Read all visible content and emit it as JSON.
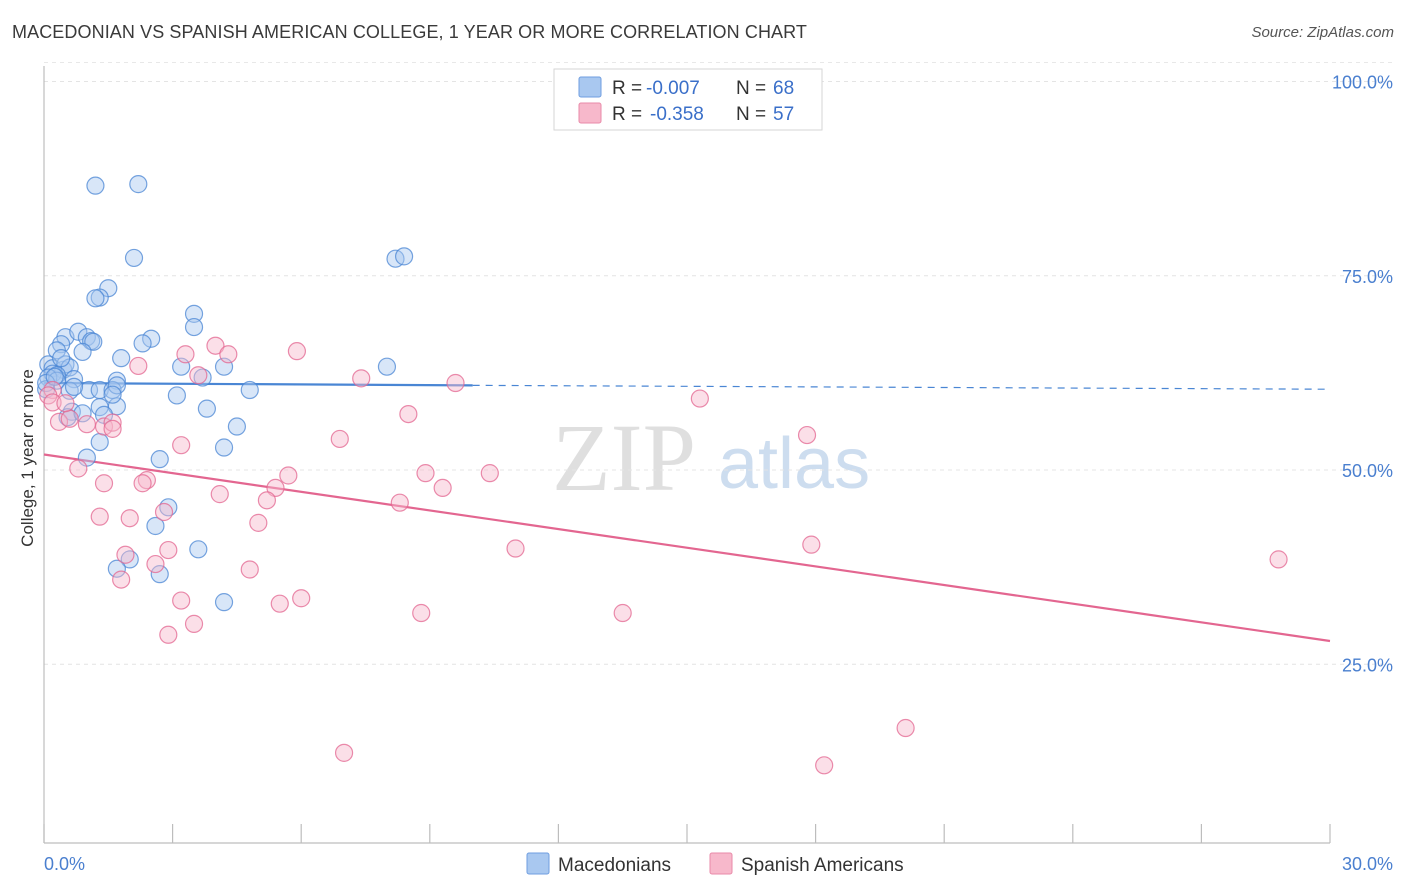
{
  "header": {
    "title": "MACEDONIAN VS SPANISH AMERICAN COLLEGE, 1 YEAR OR MORE CORRELATION CHART",
    "source": "Source: ZipAtlas.com"
  },
  "watermark": {
    "zip": "ZIP",
    "atlas": "atlas"
  },
  "legend_top": {
    "rows": [
      {
        "r_label": "R =",
        "r_value": "-0.007",
        "n_label": "N =",
        "n_value": "68",
        "color": "#a9c8f0"
      },
      {
        "r_label": "R =",
        "r_value": "-0.358",
        "n_label": "N =",
        "n_value": "57",
        "color": "#f7b8cb"
      }
    ]
  },
  "legend_bottom": {
    "items": [
      {
        "label": "Macedonians",
        "color": "#a9c8f0"
      },
      {
        "label": "Spanish Americans",
        "color": "#f7b8cb"
      }
    ]
  },
  "chart_data": {
    "type": "scatter",
    "title": "MACEDONIAN VS SPANISH AMERICAN COLLEGE, 1 YEAR OR MORE CORRELATION CHART",
    "xlabel": "",
    "ylabel": "College, 1 year or more",
    "xlim": [
      0,
      30
    ],
    "ylim": [
      2,
      102
    ],
    "x_tick_labels": [
      "0.0%",
      "30.0%"
    ],
    "y_ticks": [
      25,
      50,
      75,
      100
    ],
    "y_tick_labels": [
      "25.0%",
      "50.0%",
      "75.0%",
      "100.0%"
    ],
    "grid": true,
    "colors": {
      "macedonians": "#4a86d4",
      "spanish": "#e36690",
      "mac_fill": "#a9c8f0",
      "spa_fill": "#f7b8cb"
    },
    "series": [
      {
        "name": "Macedonians",
        "r": -0.007,
        "n": 68,
        "trend": {
          "x0": 0,
          "y0": 61.2,
          "x1": 10,
          "y1": 60.9,
          "x_dash_end": 30,
          "y_dash_end": 60.4
        },
        "points": [
          [
            1.2,
            86.6
          ],
          [
            2.2,
            86.8
          ],
          [
            2.1,
            77.3
          ],
          [
            8.2,
            77.2
          ],
          [
            8.4,
            77.5
          ],
          [
            1.5,
            73.4
          ],
          [
            1.3,
            72.2
          ],
          [
            1.2,
            72.1
          ],
          [
            3.5,
            70.1
          ],
          [
            3.5,
            68.4
          ],
          [
            2.5,
            66.9
          ],
          [
            2.3,
            66.3
          ],
          [
            0.5,
            67.1
          ],
          [
            0.8,
            67.8
          ],
          [
            1.0,
            67.1
          ],
          [
            1.1,
            66.6
          ],
          [
            1.15,
            66.5
          ],
          [
            0.4,
            66.2
          ],
          [
            0.3,
            65.4
          ],
          [
            0.9,
            65.2
          ],
          [
            0.1,
            63.6
          ],
          [
            0.2,
            63.1
          ],
          [
            0.45,
            62.9
          ],
          [
            0.5,
            63.6
          ],
          [
            0.6,
            63.2
          ],
          [
            0.2,
            62.4
          ],
          [
            0.3,
            62.2
          ],
          [
            0.4,
            64.4
          ],
          [
            1.8,
            64.4
          ],
          [
            3.2,
            63.3
          ],
          [
            4.2,
            63.3
          ],
          [
            8.0,
            63.3
          ],
          [
            0.1,
            61.9
          ],
          [
            0.3,
            61.5
          ],
          [
            0.7,
            61.7
          ],
          [
            1.7,
            61.5
          ],
          [
            3.7,
            61.9
          ],
          [
            0.05,
            60.4
          ],
          [
            0.6,
            60.2
          ],
          [
            1.05,
            60.3
          ],
          [
            1.3,
            60.3
          ],
          [
            1.6,
            60.3
          ],
          [
            1.7,
            60.9
          ],
          [
            4.8,
            60.3
          ],
          [
            0.65,
            57.5
          ],
          [
            1.3,
            58.1
          ],
          [
            1.7,
            58.2
          ],
          [
            3.1,
            59.6
          ],
          [
            3.8,
            57.9
          ],
          [
            0.55,
            56.8
          ],
          [
            0.9,
            57.3
          ],
          [
            1.4,
            57.1
          ],
          [
            1.6,
            59.7
          ],
          [
            4.5,
            55.6
          ],
          [
            1.3,
            53.6
          ],
          [
            4.2,
            52.9
          ],
          [
            1.0,
            51.6
          ],
          [
            2.7,
            51.4
          ],
          [
            2.9,
            45.2
          ],
          [
            2.6,
            42.8
          ],
          [
            3.6,
            39.8
          ],
          [
            2.0,
            38.5
          ],
          [
            1.7,
            37.3
          ],
          [
            2.7,
            36.6
          ],
          [
            4.2,
            33.0
          ],
          [
            0.05,
            61.2
          ],
          [
            0.25,
            62.0
          ],
          [
            0.7,
            60.7
          ]
        ]
      },
      {
        "name": "Spanish Americans",
        "r": -0.358,
        "n": 57,
        "trend": {
          "x0": 0,
          "y0": 52.0,
          "x1": 30,
          "y1": 28.0
        },
        "points": [
          [
            5.9,
            65.3
          ],
          [
            4.0,
            66.0
          ],
          [
            3.3,
            64.9
          ],
          [
            4.3,
            64.9
          ],
          [
            2.2,
            63.4
          ],
          [
            3.6,
            62.2
          ],
          [
            7.4,
            61.8
          ],
          [
            9.6,
            61.2
          ],
          [
            0.2,
            60.3
          ],
          [
            0.1,
            59.6
          ],
          [
            0.2,
            58.7
          ],
          [
            0.35,
            56.2
          ],
          [
            0.6,
            56.6
          ],
          [
            15.3,
            59.2
          ],
          [
            8.5,
            57.2
          ],
          [
            1.0,
            55.9
          ],
          [
            1.4,
            55.6
          ],
          [
            1.6,
            56.1
          ],
          [
            6.9,
            54.0
          ],
          [
            17.8,
            54.5
          ],
          [
            3.2,
            53.2
          ],
          [
            0.8,
            50.2
          ],
          [
            5.7,
            49.3
          ],
          [
            8.9,
            49.6
          ],
          [
            10.4,
            49.6
          ],
          [
            9.3,
            47.7
          ],
          [
            2.4,
            48.7
          ],
          [
            2.3,
            48.3
          ],
          [
            1.4,
            48.3
          ],
          [
            5.4,
            47.7
          ],
          [
            4.1,
            46.9
          ],
          [
            5.2,
            46.1
          ],
          [
            8.3,
            45.8
          ],
          [
            2.8,
            44.6
          ],
          [
            1.3,
            44.0
          ],
          [
            2.0,
            43.8
          ],
          [
            5.0,
            43.2
          ],
          [
            17.9,
            40.4
          ],
          [
            11.0,
            39.9
          ],
          [
            2.9,
            39.7
          ],
          [
            1.9,
            39.1
          ],
          [
            2.6,
            37.9
          ],
          [
            4.8,
            37.2
          ],
          [
            28.8,
            38.5
          ],
          [
            1.8,
            35.9
          ],
          [
            6.0,
            33.5
          ],
          [
            3.2,
            33.2
          ],
          [
            5.5,
            32.8
          ],
          [
            8.8,
            31.6
          ],
          [
            13.5,
            31.6
          ],
          [
            3.5,
            30.2
          ],
          [
            2.9,
            28.8
          ],
          [
            20.1,
            16.8
          ],
          [
            7.0,
            13.6
          ],
          [
            18.2,
            12.0
          ],
          [
            0.5,
            58.6
          ],
          [
            1.6,
            55.3
          ]
        ]
      }
    ]
  }
}
